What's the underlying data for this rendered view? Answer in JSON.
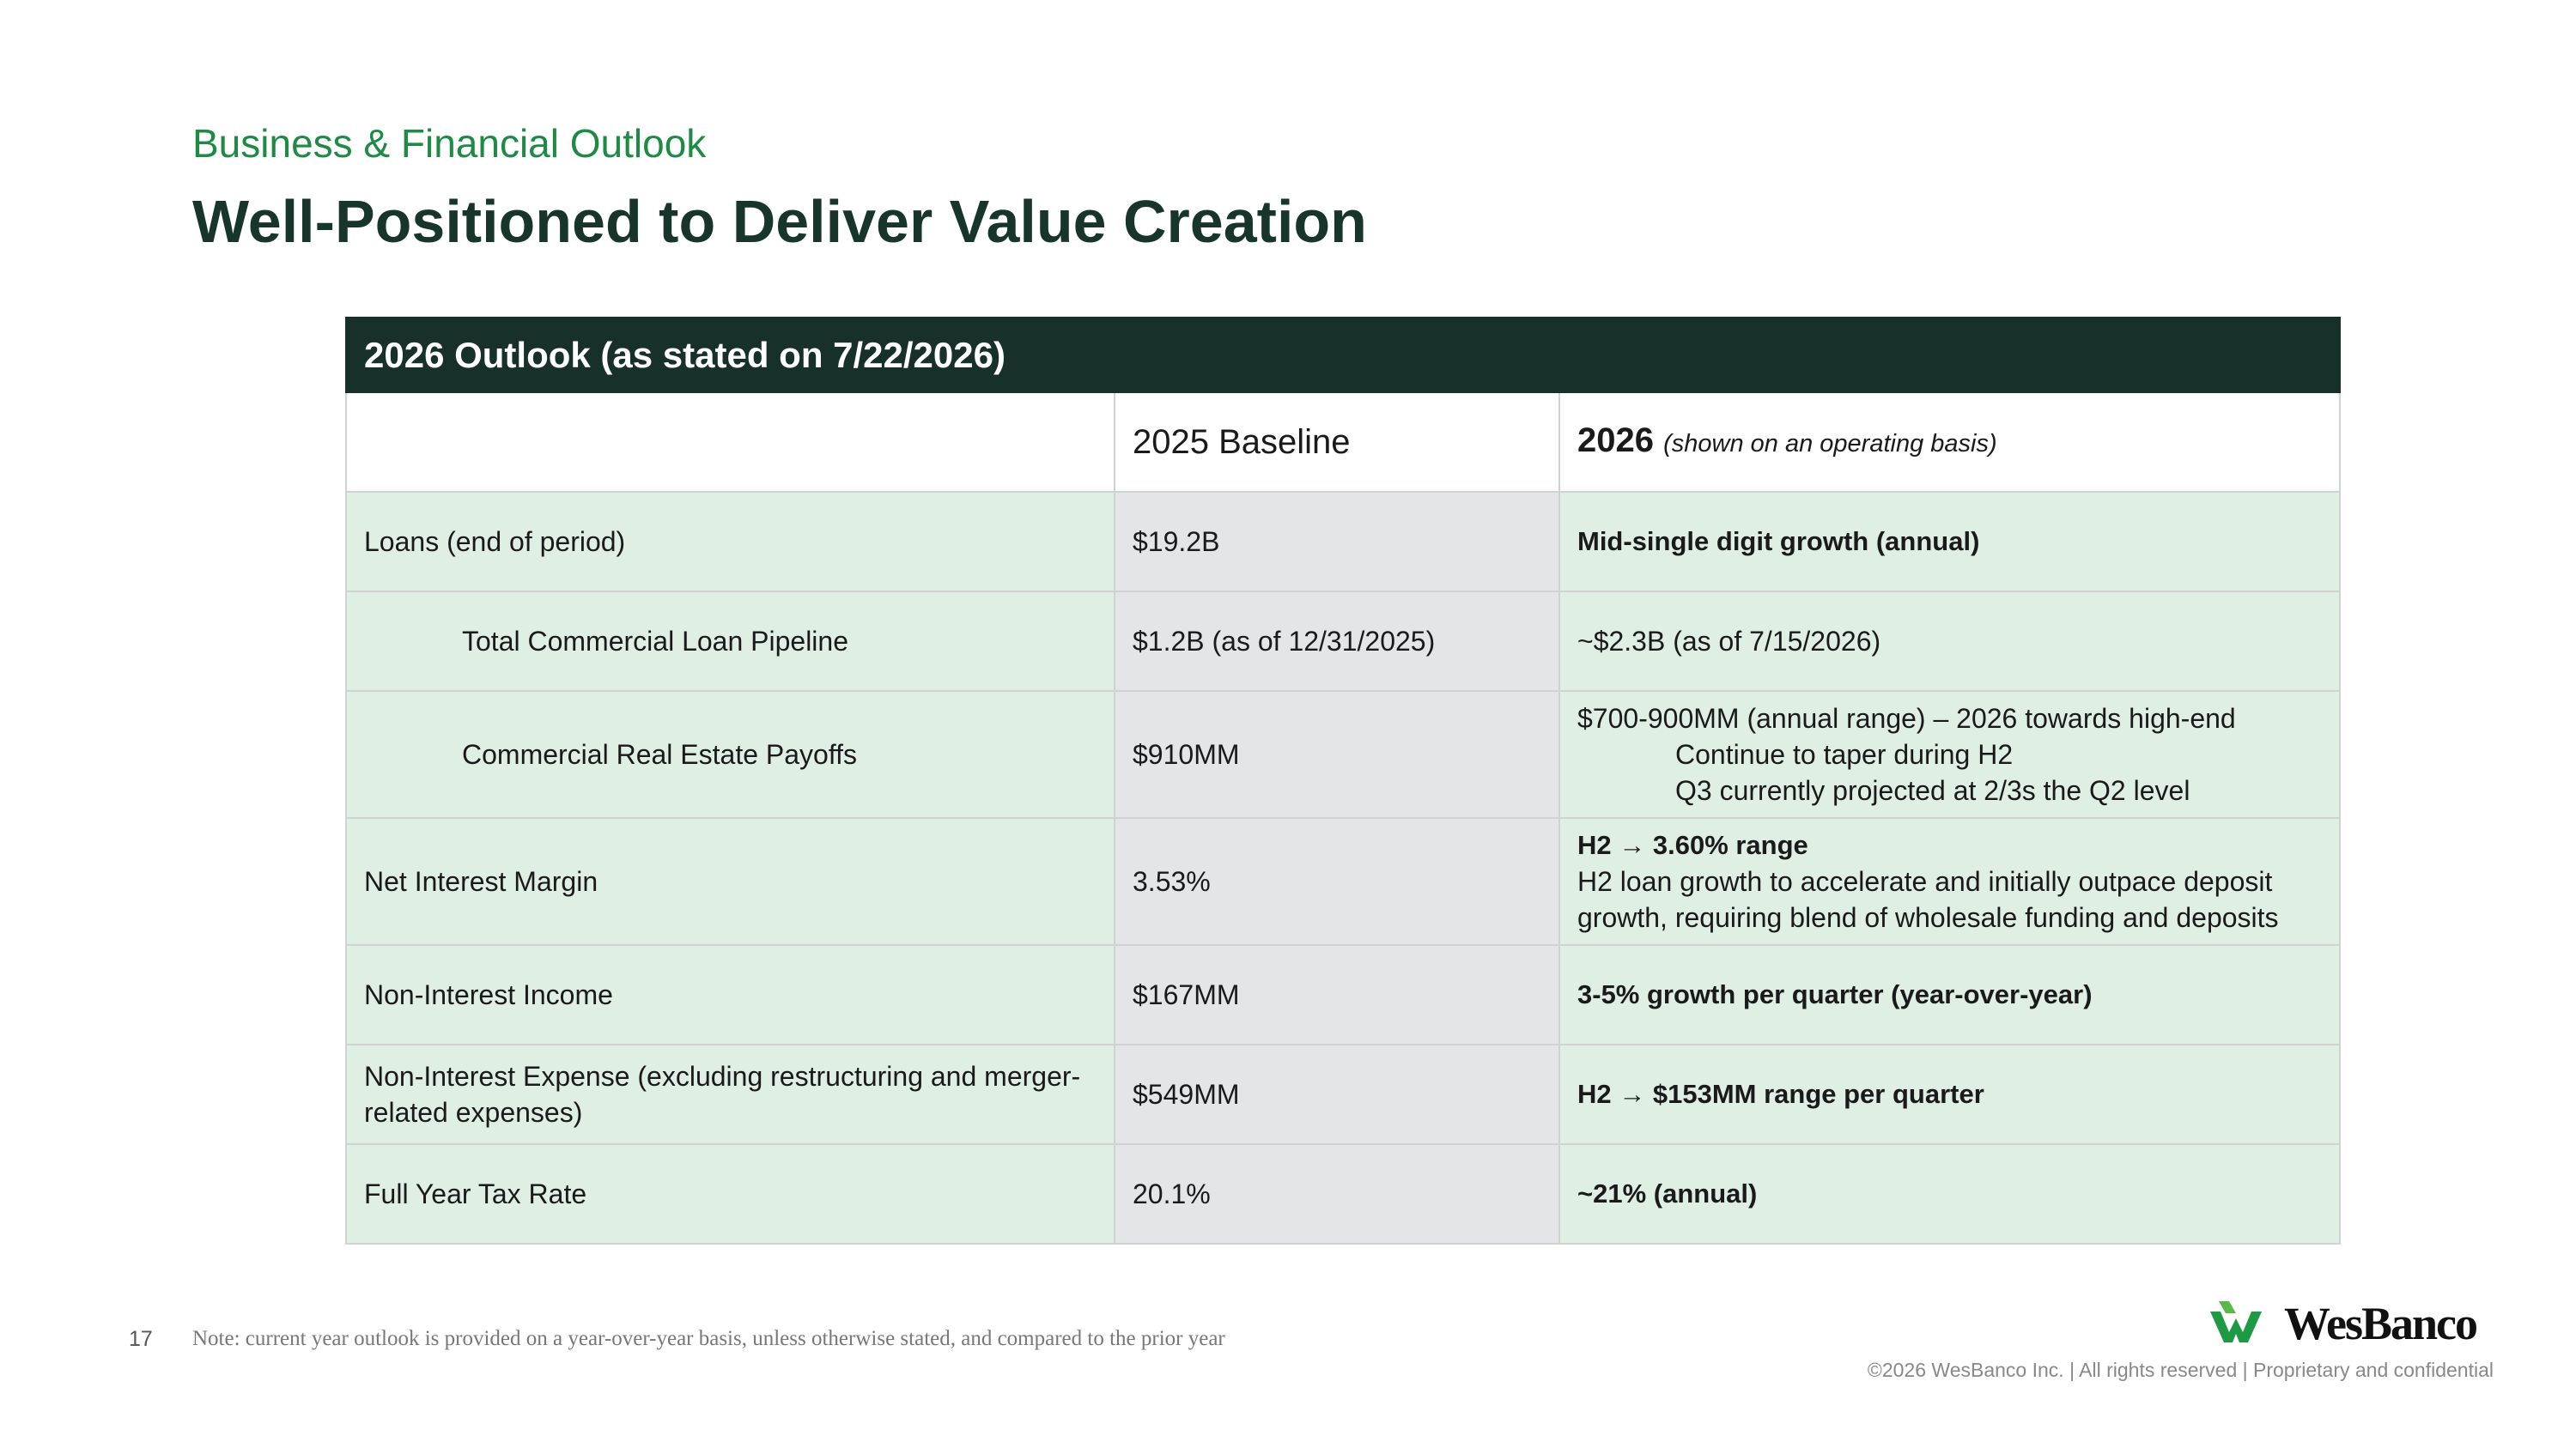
{
  "header": {
    "kicker": "Business & Financial Outlook",
    "title": "Well-Positioned to Deliver Value Creation"
  },
  "table": {
    "caption": "2026 Outlook (as stated on 7/22/2026)",
    "columns": [
      "2025 Baseline",
      "2026",
      "(shown on an operating basis)"
    ],
    "rows": [
      [
        "Loans (end of period)",
        "$19.2B",
        "Mid-single digit growth (annual)"
      ],
      [
        "Total Commercial Loan Pipeline",
        "$1.2B (as of 12/31/2025)",
        "~$2.3B (as of 7/15/2026)"
      ],
      [
        "Commercial Real Estate Payoffs",
        "$910MM",
        [
          "$700-900MM (annual range) – 2026 towards high-end",
          "Continue to taper during H2",
          "Q3 currently projected at 2/3s the Q2 level"
        ]
      ],
      [
        "Net Interest Margin",
        "3.53%",
        [
          "H2 → 3.60% range",
          "H2 loan growth to accelerate and initially outpace deposit growth, requiring blend of wholesale funding and deposits"
        ]
      ],
      [
        "Non-Interest Income",
        "$167MM",
        "3-5% growth per quarter (year-over-year)"
      ],
      [
        "Non-Interest Expense (excluding restructuring and merger-related expenses)",
        "$549MM",
        "H2 → $153MM range per quarter"
      ],
      [
        "Full Year Tax Rate",
        "20.1%",
        "~21% (annual)"
      ]
    ]
  },
  "footer": {
    "page": "17",
    "note": "Note: current year outlook is provided on a year-over-year basis, unless otherwise stated, and compared to the prior year",
    "logo": "WesBanco",
    "copyright": "©2026 WesBanco Inc.  |  All rights reserved  |  Proprietary and confidential"
  }
}
